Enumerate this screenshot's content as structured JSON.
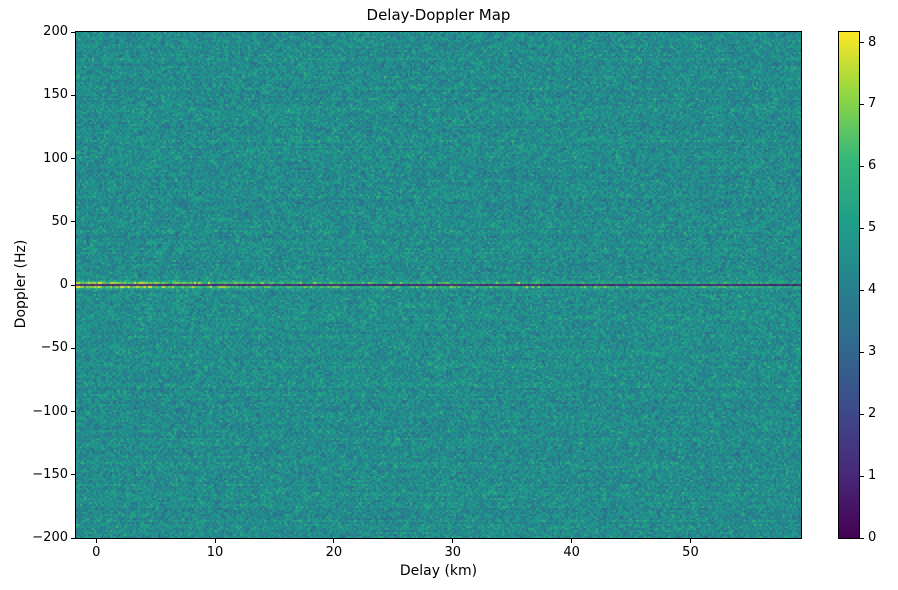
{
  "figure": {
    "background_color": "#ffffff"
  },
  "chart_data": {
    "type": "heatmap",
    "title": "Delay-Doppler Map",
    "xlabel": "Delay (km)",
    "ylabel": "Doppler (Hz)",
    "x_range": [
      -1.7,
      59.3
    ],
    "y_range": [
      -200,
      200
    ],
    "x_ticks": [
      0,
      10,
      20,
      30,
      40,
      50
    ],
    "y_ticks": [
      200,
      150,
      100,
      50,
      0,
      -50,
      -100,
      -150,
      -200
    ],
    "grid": false,
    "legend": "none",
    "colorbar": {
      "position": "right",
      "min": 0,
      "max": 8.17,
      "ticks": [
        0,
        1,
        2,
        3,
        4,
        5,
        6,
        7,
        8
      ]
    },
    "colormap": {
      "name": "viridis",
      "stops": [
        [
          0.0,
          "#440154"
        ],
        [
          0.125,
          "#482878"
        ],
        [
          0.25,
          "#3e4989"
        ],
        [
          0.375,
          "#31688e"
        ],
        [
          0.5,
          "#26828e"
        ],
        [
          0.625,
          "#1f9e89"
        ],
        [
          0.75,
          "#35b779"
        ],
        [
          0.875,
          "#90d743"
        ],
        [
          1.0,
          "#fde725"
        ]
      ]
    },
    "background_noise": {
      "mean": 4.45,
      "std": 0.55,
      "row_banding_std": 0.12
    },
    "ridge": {
      "doppler_hz": 0,
      "dark_line_value": 0.6,
      "peak_value": 8.1,
      "peak_delay_km": 0,
      "decay_km": 12,
      "band_halfwidth_hz": 3.5
    }
  }
}
